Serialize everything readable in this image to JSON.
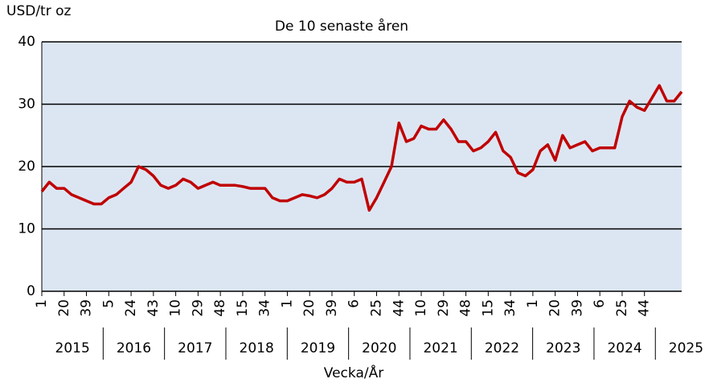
{
  "chart_data": {
    "type": "line",
    "title": "De 10 senaste åren",
    "y_label": "USD/tr oz",
    "x_label": "Vecka/År",
    "color": "#c00000",
    "plot_background": "#dce6f2",
    "grid": true,
    "ylim": [
      0,
      40
    ],
    "yticks": [
      0,
      10,
      20,
      30,
      40
    ],
    "xlim": [
      0,
      86
    ],
    "categories": [
      "1",
      null,
      null,
      "20",
      null,
      null,
      "39",
      null,
      null,
      "5",
      null,
      null,
      "24",
      null,
      null,
      "43",
      null,
      null,
      "10",
      null,
      null,
      "29",
      null,
      null,
      "48",
      null,
      null,
      "15",
      null,
      null,
      "34",
      null,
      null,
      "1",
      null,
      null,
      "20",
      null,
      null,
      "39",
      null,
      null,
      "6",
      null,
      null,
      "25",
      null,
      null,
      "44",
      null,
      null,
      "10",
      null,
      null,
      "29",
      null,
      null,
      "48",
      null,
      null,
      "15",
      null,
      null,
      "34",
      null,
      null,
      "1",
      null,
      null,
      "20",
      null,
      null,
      "39",
      null,
      null,
      "6",
      null,
      null,
      "25",
      null,
      null,
      "44",
      null,
      null,
      null,
      null,
      null
    ],
    "values": [
      16,
      17.5,
      16.5,
      16.5,
      15.5,
      15,
      14.5,
      14,
      14,
      15,
      15.5,
      16.5,
      17.5,
      20,
      19.5,
      18.5,
      17,
      16.5,
      17,
      18,
      17.5,
      16.5,
      17,
      17.5,
      17,
      17,
      17,
      16.8,
      16.5,
      16.5,
      16.5,
      15,
      14.5,
      14.5,
      15,
      15.5,
      15.3,
      15,
      15.5,
      16.5,
      18,
      17.5,
      17.5,
      18,
      13,
      15,
      17.5,
      20,
      27,
      24,
      24.5,
      26.5,
      26,
      26,
      27.5,
      26,
      24,
      24,
      22.5,
      23,
      24,
      25.5,
      22.5,
      21.5,
      19,
      18.5,
      19.5,
      22.5,
      23.5,
      21,
      25,
      23,
      23.5,
      24,
      22.5,
      23,
      23,
      23,
      28,
      30.5,
      29.5,
      29,
      31,
      33,
      30.5,
      30.5,
      32
    ],
    "x_groups": [
      "2015",
      "2016",
      "2017",
      "2018",
      "2019",
      "2020",
      "2021",
      "2022",
      "2023",
      "2024",
      "2025"
    ]
  }
}
